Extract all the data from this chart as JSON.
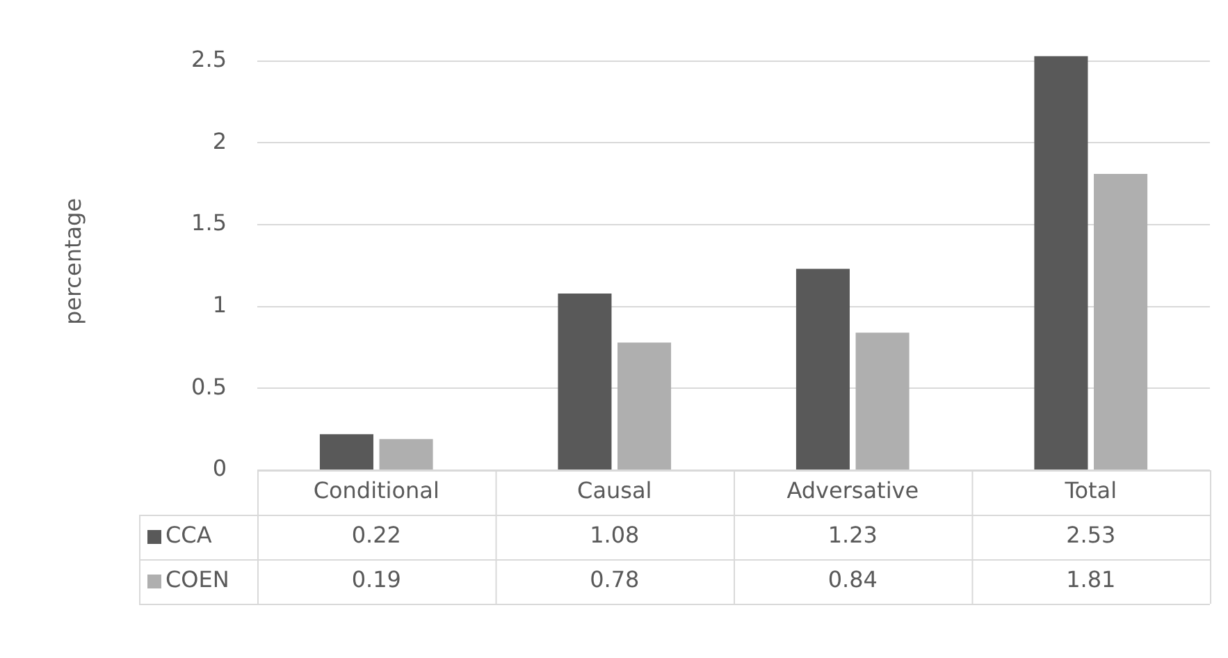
{
  "chart_data": {
    "type": "bar",
    "ylabel": "percentage",
    "categories": [
      "Conditional",
      "Causal",
      "Adversative",
      "Total"
    ],
    "series": [
      {
        "name": "CCA",
        "color": "#595959",
        "values": [
          0.22,
          1.08,
          1.23,
          2.53
        ]
      },
      {
        "name": "COEN",
        "color": "#afafaf",
        "values": [
          0.19,
          0.78,
          0.84,
          1.81
        ]
      }
    ],
    "ylim": [
      0,
      2.55
    ],
    "yticks": [
      0,
      0.5,
      1,
      1.5,
      2,
      2.5
    ],
    "grid": "y",
    "legend": "bottom",
    "data_labels": true
  }
}
